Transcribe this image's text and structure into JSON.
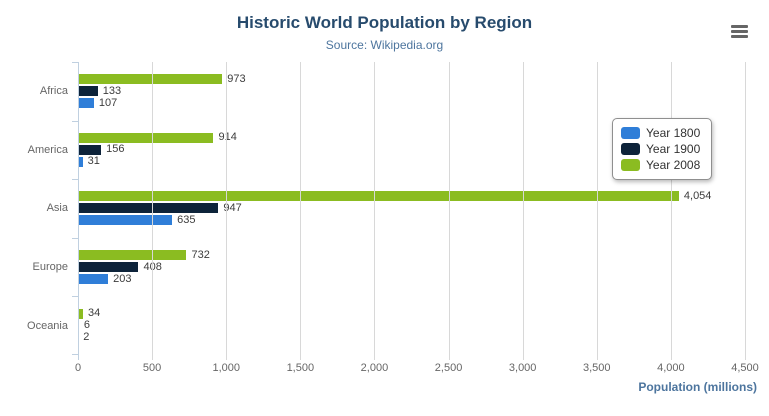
{
  "chart_data": {
    "type": "bar",
    "orientation": "horizontal",
    "title": "Historic World Population by Region",
    "subtitle": "Source: Wikipedia.org",
    "categories": [
      "Africa",
      "America",
      "Asia",
      "Europe",
      "Oceania"
    ],
    "series": [
      {
        "name": "Year 1800",
        "color": "#2f7ed8",
        "values": [
          107,
          31,
          635,
          203,
          2
        ]
      },
      {
        "name": "Year 1900",
        "color": "#0d233a",
        "values": [
          133,
          156,
          947,
          408,
          6
        ]
      },
      {
        "name": "Year 2008",
        "color": "#8bbc21",
        "values": [
          973,
          914,
          4054,
          732,
          34
        ]
      }
    ],
    "bar_order_top_to_bottom": [
      "Year 2008",
      "Year 1900",
      "Year 1800"
    ],
    "xlabel": "Population (millions)",
    "xlim": [
      0,
      4500
    ],
    "xticks": [
      0,
      500,
      1000,
      1500,
      2000,
      2500,
      3000,
      3500,
      4000,
      4500
    ],
    "data_labels": true,
    "grid": true,
    "legend_position": "right"
  },
  "icons": {
    "menu": "hamburger-menu-icon"
  },
  "colors": {
    "title": "#274b6d",
    "subtitle": "#4d759e",
    "axis_line": "#c0d0e0",
    "gridline": "#d8d8d8",
    "tick_label": "#666666",
    "data_label": "#3c3c3c",
    "background": "#ffffff"
  }
}
